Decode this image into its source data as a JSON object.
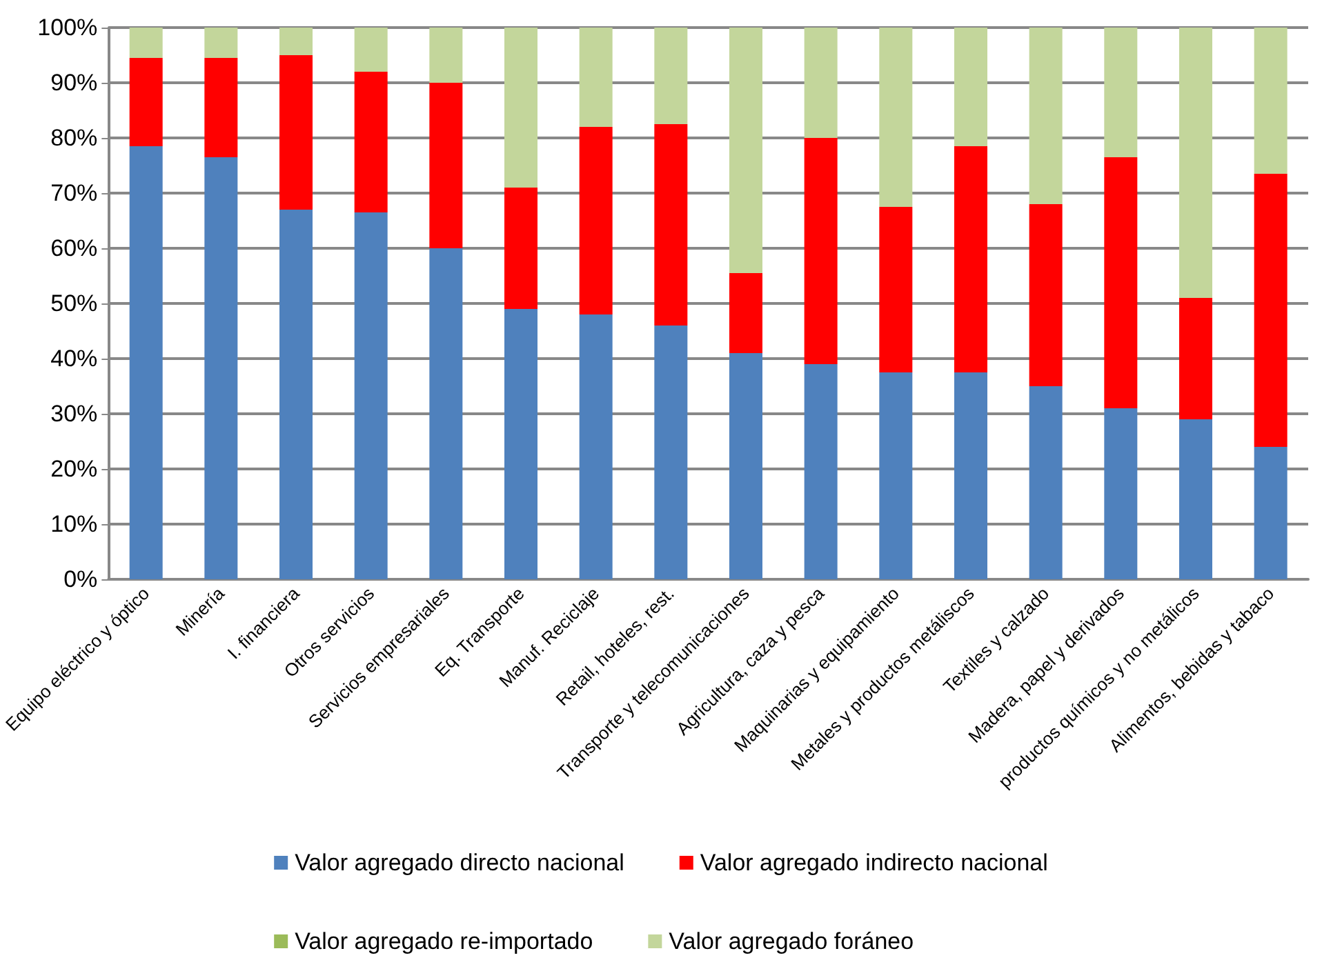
{
  "chart_data": {
    "type": "bar",
    "stacked": true,
    "categories": [
      "Equipo eléctrico y óptico",
      "Minería",
      "I. financiera",
      "Otros servicios",
      "Servicios empresariales",
      "Eq. Transporte",
      "Manuf. Reciclaje",
      "Retail, hoteles, rest.",
      "Transporte y telecomunicaciones",
      "Agricultura, caza y pesca",
      "Maquinarias y equipamiento",
      "Metales y productos metáliscos",
      "Textiles y calzado",
      "Madera, papel y derivados",
      "productos químicos y no metálicos",
      "Alimentos, bebidas y tabaco"
    ],
    "series": [
      {
        "name": "Valor agregado directo nacional",
        "color": "#4f81bd",
        "values": [
          78.5,
          76.5,
          67,
          66.5,
          60,
          49,
          48,
          46,
          41,
          39,
          37.5,
          37.5,
          35,
          31,
          29,
          24
        ]
      },
      {
        "name": "Valor agregado indirecto nacional",
        "color": "#ff0000",
        "values": [
          16,
          18,
          28,
          25.5,
          30,
          22,
          34,
          36.5,
          14.5,
          41,
          30,
          41,
          33,
          45.5,
          22,
          49.5
        ]
      },
      {
        "name": "Valor agregado re-importado",
        "color": "#9bbb59",
        "values": [
          0,
          0,
          0,
          0,
          0,
          0,
          0,
          0,
          0,
          0,
          0,
          0,
          0,
          0,
          0,
          0
        ]
      },
      {
        "name": "Valor agregado foráneo",
        "color": "#c3d69b",
        "values": [
          5.5,
          5.5,
          5,
          8,
          10,
          29,
          18,
          17.5,
          44.5,
          20,
          32.5,
          21.5,
          32,
          23.5,
          49,
          26.5
        ]
      }
    ],
    "ylim": [
      0,
      100
    ],
    "yticks": [
      {
        "value": 0,
        "label": "0%"
      },
      {
        "value": 10,
        "label": "10%"
      },
      {
        "value": 20,
        "label": "20%"
      },
      {
        "value": 30,
        "label": "30%"
      },
      {
        "value": 40,
        "label": "40%"
      },
      {
        "value": 50,
        "label": "50%"
      },
      {
        "value": 60,
        "label": "60%"
      },
      {
        "value": 70,
        "label": "70%"
      },
      {
        "value": 80,
        "label": "80%"
      },
      {
        "value": 90,
        "label": "90%"
      },
      {
        "value": 100,
        "label": "100%"
      }
    ],
    "grid": "y",
    "legend": "bottom"
  }
}
